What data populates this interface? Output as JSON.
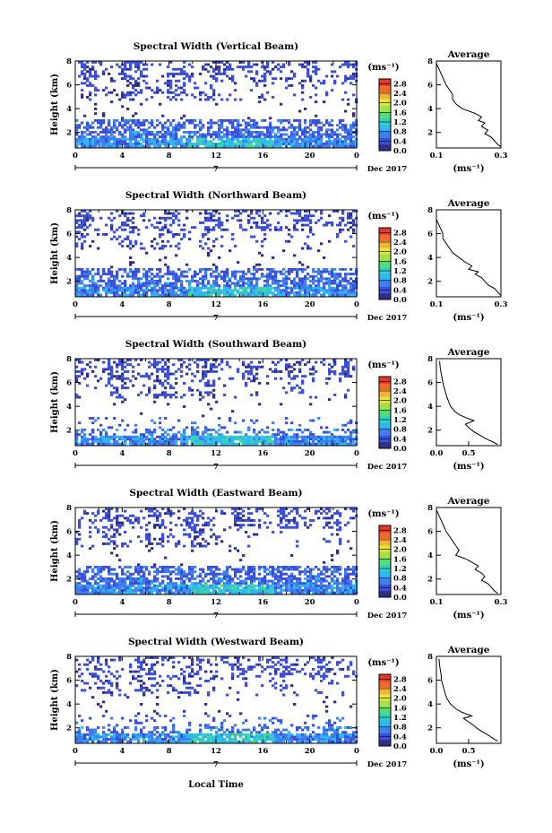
{
  "figure": {
    "xlabel": "Local Time",
    "date_label": "Dec 2017",
    "day_label": "7",
    "unit_label": "(ms⁻¹)",
    "ylabel": "Height (km)",
    "average_title": "Average",
    "average_xlabel": "(ms⁻¹)"
  },
  "colorbar": {
    "ticks": [
      "0.0",
      "0.4",
      "0.8",
      "1.2",
      "1.6",
      "2.0",
      "2.4",
      "2.8"
    ],
    "range": [
      0,
      3.0
    ],
    "colors": [
      "#2f2f86",
      "#3b4fd9",
      "#3f7ff0",
      "#2fb7f2",
      "#33d2c0",
      "#55dc7a",
      "#a2e14a",
      "#e6e43a",
      "#f4b23a",
      "#ee6b2d",
      "#e03a2a"
    ]
  },
  "chart_data": [
    {
      "type": "heatmap",
      "title": "Spectral Width (Vertical Beam)",
      "x_ticks": [
        "0",
        "4",
        "8",
        "12",
        "16",
        "20",
        "0"
      ],
      "xlim": [
        0,
        24
      ],
      "ylim": [
        0.7,
        8
      ],
      "y_ticks": [
        "2",
        "4",
        "6",
        "8"
      ],
      "avg_profile": {
        "xlim": [
          0.1,
          0.3
        ],
        "x_ticks": [
          "0.1",
          "0.3"
        ],
        "height": [
          7.8,
          7.2,
          6.6,
          6.0,
          5.6,
          5.2,
          4.8,
          4.4,
          4.0,
          3.8,
          3.6,
          3.3,
          3.0,
          2.8,
          2.5,
          2.2,
          1.9,
          1.6,
          1.3,
          1.0,
          0.8
        ],
        "value": [
          0.1,
          0.11,
          0.12,
          0.13,
          0.14,
          0.15,
          0.15,
          0.16,
          0.18,
          0.2,
          0.22,
          0.24,
          0.23,
          0.25,
          0.24,
          0.26,
          0.25,
          0.27,
          0.28,
          0.29,
          0.3
        ]
      }
    },
    {
      "type": "heatmap",
      "title": "Spectral Width (Northward Beam)",
      "x_ticks": [
        "0",
        "4",
        "8",
        "12",
        "16",
        "20",
        "0"
      ],
      "xlim": [
        0,
        24
      ],
      "ylim": [
        0.7,
        8
      ],
      "y_ticks": [
        "2",
        "4",
        "6",
        "8"
      ],
      "avg_profile": {
        "xlim": [
          0.1,
          0.3
        ],
        "x_ticks": [
          "0.1",
          "0.3"
        ],
        "height": [
          7.8,
          7.2,
          6.6,
          6.0,
          5.6,
          5.2,
          4.8,
          4.4,
          4.0,
          3.6,
          3.3,
          3.0,
          2.8,
          2.6,
          2.3,
          2.0,
          1.7,
          1.4,
          1.1,
          0.8
        ],
        "value": [
          0.1,
          0.1,
          0.11,
          0.12,
          0.12,
          0.13,
          0.14,
          0.15,
          0.17,
          0.19,
          0.21,
          0.2,
          0.23,
          0.22,
          0.24,
          0.25,
          0.26,
          0.28,
          0.29,
          0.3
        ]
      }
    },
    {
      "type": "heatmap",
      "title": "Spectral Width (Southward Beam)",
      "x_ticks": [
        "0",
        "4",
        "8",
        "12",
        "16",
        "20",
        "0"
      ],
      "xlim": [
        0,
        24
      ],
      "ylim": [
        0.7,
        8
      ],
      "y_ticks": [
        "2",
        "4",
        "6",
        "8"
      ],
      "avg_profile": {
        "xlim": [
          0.0,
          1.0
        ],
        "x_ticks": [
          "0.0",
          "0.5"
        ],
        "height": [
          7.8,
          7.2,
          6.6,
          6.0,
          5.6,
          5.2,
          4.8,
          4.4,
          4.0,
          3.6,
          3.3,
          3.0,
          2.8,
          2.5,
          2.2,
          2.0,
          1.8,
          1.5,
          1.2,
          1.0,
          0.8
        ],
        "value": [
          0.05,
          0.06,
          0.08,
          0.1,
          0.12,
          0.14,
          0.16,
          0.19,
          0.22,
          0.28,
          0.35,
          0.48,
          0.58,
          0.45,
          0.5,
          0.55,
          0.6,
          0.7,
          0.8,
          0.88,
          0.95
        ]
      }
    },
    {
      "type": "heatmap",
      "title": "Spectral Width (Eastward Beam)",
      "x_ticks": [
        "0",
        "4",
        "8",
        "12",
        "16",
        "20",
        "0"
      ],
      "xlim": [
        0,
        24
      ],
      "ylim": [
        0.7,
        8
      ],
      "y_ticks": [
        "2",
        "4",
        "6",
        "8"
      ],
      "avg_profile": {
        "xlim": [
          0.1,
          0.3
        ],
        "x_ticks": [
          "0.1",
          "0.3"
        ],
        "height": [
          7.8,
          7.2,
          6.6,
          6.0,
          5.6,
          5.2,
          4.8,
          4.4,
          4.0,
          3.7,
          3.4,
          3.1,
          2.8,
          2.5,
          2.2,
          1.9,
          1.6,
          1.3,
          1.0,
          0.8
        ],
        "value": [
          0.1,
          0.11,
          0.12,
          0.13,
          0.14,
          0.15,
          0.16,
          0.17,
          0.16,
          0.19,
          0.21,
          0.23,
          0.22,
          0.24,
          0.25,
          0.24,
          0.26,
          0.27,
          0.28,
          0.29
        ]
      }
    },
    {
      "type": "heatmap",
      "title": "Spectral Width (Westward Beam)",
      "x_ticks": [
        "0",
        "4",
        "8",
        "12",
        "16",
        "20",
        "0"
      ],
      "xlim": [
        0,
        24
      ],
      "ylim": [
        0.7,
        8
      ],
      "y_ticks": [
        "2",
        "4",
        "6",
        "8"
      ],
      "avg_profile": {
        "xlim": [
          0.0,
          1.0
        ],
        "x_ticks": [
          "0.0",
          "0.5"
        ],
        "height": [
          7.8,
          7.2,
          6.6,
          6.0,
          5.6,
          5.2,
          4.8,
          4.4,
          4.0,
          3.6,
          3.3,
          3.0,
          2.8,
          2.5,
          2.2,
          2.0,
          1.7,
          1.4,
          1.1,
          0.9
        ],
        "value": [
          0.04,
          0.05,
          0.07,
          0.08,
          0.1,
          0.12,
          0.14,
          0.17,
          0.22,
          0.3,
          0.4,
          0.55,
          0.42,
          0.5,
          0.58,
          0.62,
          0.7,
          0.8,
          0.88,
          0.95
        ]
      }
    }
  ]
}
